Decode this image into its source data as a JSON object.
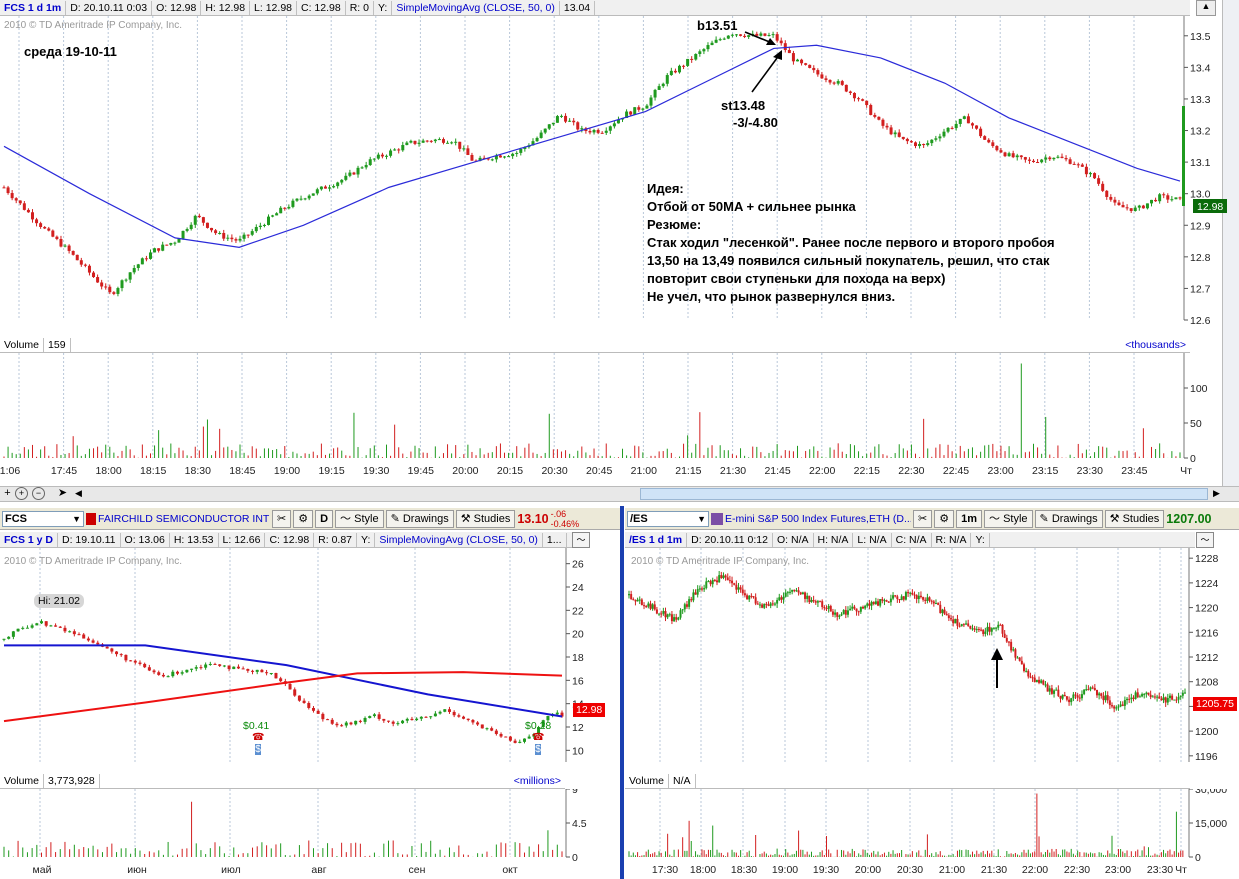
{
  "top": {
    "header": [
      "FCS 1 d 1m",
      "D: 20.10.11 0:03",
      "O: 12.98",
      "H: 12.98",
      "L: 12.98",
      "C: 12.98",
      "R: 0",
      "Y:",
      "SimpleMovingAvg (CLOSE, 50, 0)",
      "13.04"
    ],
    "copyright": "2010 © TD Ameritrade IP Company, Inc.",
    "date_note": "среда 19-10-11",
    "annot_b": "b13.51",
    "annot_st": "st13.48",
    "annot_pl": "-3/-4.80",
    "idea_lines": [
      "Идея:",
      "Отбой от 50MA + сильнее рынка",
      "Резюме:",
      "Стак ходил \"лесенкой\". Ранее после первого и второго пробоя",
      "13,50 на 13,49 появился сильный покупатель, решил, что стак",
      "повторит свои ступеньки для похода на верх)",
      "Не учел, что рынок развернулся вниз."
    ],
    "price_tag": "12.98",
    "volume_label": "Volume",
    "volume_value": "159",
    "volume_units": "<thousands>"
  },
  "bl_toolbar": {
    "symbol": "FCS",
    "name": "FAIRCHILD SEMICONDUCTOR INTL ...",
    "period": "D",
    "style": "Style",
    "drawings": "Drawings",
    "studies": "Studies",
    "price": "13.10",
    "chg": "-.06",
    "pct": "-0.46%"
  },
  "br_toolbar": {
    "symbol": "/ES",
    "name": "E-mini S&P 500 Index Futures,ETH (D...",
    "period": "1m",
    "style": "Style",
    "drawings": "Drawings",
    "studies": "Studies",
    "price": "1207.00"
  },
  "bl": {
    "header": [
      "FCS 1 y D",
      "D: 19.10.11",
      "O: 13.06",
      "H: 13.53",
      "L: 12.66",
      "C: 12.98",
      "R: 0.87",
      "Y:",
      "SimpleMovingAvg (CLOSE, 50, 0)",
      "1..."
    ],
    "copyright": "2010 © TD Ameritrade IP Company, Inc.",
    "hi_label": "Hi: 21.02",
    "div1": "$0.41",
    "div2": "$0.28",
    "price_tag": "12.98",
    "volume_label": "Volume",
    "volume_value": "3,773,928",
    "volume_units": "<millions>"
  },
  "br": {
    "header": [
      "/ES 1 d 1m",
      "D: 20.10.11 0:12",
      "O: N/A",
      "H: N/A",
      "L: N/A",
      "C: N/A",
      "R: N/A",
      "Y:"
    ],
    "copyright": "2010 © TD Ameritrade IP Company, Inc.",
    "price_tag": "1205.75",
    "volume_label": "Volume",
    "volume_value": "N/A"
  },
  "chart_data": [
    {
      "type": "candlestick",
      "symbol": "FCS",
      "interval": "1m",
      "x_ticks": [
        "1:06",
        "17:45",
        "18:00",
        "18:15",
        "18:30",
        "18:45",
        "19:00",
        "19:15",
        "19:30",
        "19:45",
        "20:00",
        "20:15",
        "20:30",
        "20:45",
        "21:00",
        "21:15",
        "21:30",
        "21:45",
        "22:00",
        "22:15",
        "22:30",
        "22:45",
        "23:00",
        "23:15",
        "23:30",
        "23:45",
        "Чт"
      ],
      "y_ticks": [
        12.6,
        12.7,
        12.8,
        12.9,
        13.0,
        13.1,
        13.2,
        13.3,
        13.4,
        13.5
      ],
      "ylim": [
        12.6,
        13.55
      ],
      "close_path": [
        [
          0,
          13.02
        ],
        [
          5,
          12.95
        ],
        [
          10,
          12.88
        ],
        [
          15,
          12.82
        ],
        [
          20,
          12.75
        ],
        [
          25,
          12.68
        ],
        [
          30,
          12.76
        ],
        [
          35,
          12.82
        ],
        [
          40,
          12.85
        ],
        [
          45,
          12.93
        ],
        [
          50,
          12.87
        ],
        [
          55,
          12.85
        ],
        [
          60,
          12.9
        ],
        [
          65,
          12.95
        ],
        [
          70,
          12.99
        ],
        [
          75,
          13.02
        ],
        [
          80,
          13.05
        ],
        [
          85,
          13.1
        ],
        [
          90,
          13.13
        ],
        [
          95,
          13.16
        ],
        [
          100,
          13.17
        ],
        [
          105,
          13.17
        ],
        [
          110,
          13.1
        ],
        [
          115,
          13.12
        ],
        [
          120,
          13.13
        ],
        [
          125,
          13.18
        ],
        [
          130,
          13.25
        ],
        [
          135,
          13.2
        ],
        [
          140,
          13.2
        ],
        [
          145,
          13.25
        ],
        [
          150,
          13.28
        ],
        [
          155,
          13.37
        ],
        [
          160,
          13.42
        ],
        [
          165,
          13.47
        ],
        [
          170,
          13.51
        ],
        [
          175,
          13.5
        ],
        [
          180,
          13.5
        ],
        [
          185,
          13.42
        ],
        [
          190,
          13.38
        ],
        [
          195,
          13.35
        ],
        [
          200,
          13.3
        ],
        [
          205,
          13.22
        ],
        [
          210,
          13.17
        ],
        [
          215,
          13.15
        ],
        [
          220,
          13.2
        ],
        [
          225,
          13.24
        ],
        [
          230,
          13.16
        ],
        [
          235,
          13.12
        ],
        [
          240,
          13.1
        ],
        [
          245,
          13.12
        ],
        [
          250,
          13.1
        ],
        [
          255,
          13.05
        ],
        [
          260,
          12.96
        ],
        [
          265,
          12.95
        ],
        [
          270,
          12.99
        ],
        [
          275,
          12.98
        ]
      ],
      "sma50": [
        [
          0,
          13.15
        ],
        [
          20,
          13.0
        ],
        [
          40,
          12.86
        ],
        [
          55,
          12.83
        ],
        [
          70,
          12.9
        ],
        [
          90,
          13.02
        ],
        [
          110,
          13.1
        ],
        [
          130,
          13.18
        ],
        [
          150,
          13.26
        ],
        [
          165,
          13.36
        ],
        [
          180,
          13.46
        ],
        [
          190,
          13.47
        ],
        [
          205,
          13.43
        ],
        [
          220,
          13.35
        ],
        [
          235,
          13.24
        ],
        [
          250,
          13.16
        ],
        [
          265,
          13.08
        ],
        [
          275,
          13.04
        ]
      ],
      "volume_ylim": [
        0,
        150
      ],
      "volume_ticks": [
        0,
        50,
        100
      ],
      "volume_peaks": [
        [
          50,
          55
        ],
        [
          250,
          135
        ]
      ],
      "annotations": [
        "b13.51",
        "st13.48",
        "-3/-4.80"
      ]
    },
    {
      "type": "candlestick",
      "symbol": "FCS",
      "interval": "D",
      "x_ticks": [
        "май",
        "июн",
        "июл",
        "авг",
        "сен",
        "окт"
      ],
      "y_ticks": [
        10,
        12,
        14,
        16,
        18,
        20,
        22,
        24,
        26
      ],
      "ylim": [
        9,
        27
      ],
      "close_path": [
        [
          0,
          19.5
        ],
        [
          5,
          20.5
        ],
        [
          10,
          21.0
        ],
        [
          15,
          20.5
        ],
        [
          20,
          20.0
        ],
        [
          25,
          19.4
        ],
        [
          30,
          18.5
        ],
        [
          35,
          17.8
        ],
        [
          40,
          17.0
        ],
        [
          45,
          16.3
        ],
        [
          50,
          16.8
        ],
        [
          55,
          17.2
        ],
        [
          60,
          17.5
        ],
        [
          65,
          17.0
        ],
        [
          70,
          16.7
        ],
        [
          75,
          16.8
        ],
        [
          80,
          15.5
        ],
        [
          85,
          14.0
        ],
        [
          90,
          12.8
        ],
        [
          95,
          12.2
        ],
        [
          100,
          12.4
        ],
        [
          105,
          13.0
        ],
        [
          110,
          12.3
        ],
        [
          115,
          12.6
        ],
        [
          120,
          12.8
        ],
        [
          125,
          13.5
        ],
        [
          130,
          12.8
        ],
        [
          135,
          12.0
        ],
        [
          140,
          11.3
        ],
        [
          145,
          10.6
        ],
        [
          150,
          11.5
        ],
        [
          155,
          13.2
        ],
        [
          158,
          12.98
        ]
      ],
      "sma50": [
        [
          0,
          19.0
        ],
        [
          40,
          19.0
        ],
        [
          80,
          17.3
        ],
        [
          120,
          14.8
        ],
        [
          158,
          12.9
        ]
      ],
      "sma200": [
        [
          0,
          12.5
        ],
        [
          40,
          14.1
        ],
        [
          80,
          15.8
        ],
        [
          100,
          16.6
        ],
        [
          130,
          16.7
        ],
        [
          158,
          16.4
        ]
      ],
      "hi": 21.02,
      "dividends": [
        "$0.41",
        "$0.28"
      ],
      "volume_ylim": [
        0,
        9
      ],
      "volume_ticks": [
        0,
        4.5,
        9
      ]
    },
    {
      "type": "candlestick",
      "symbol": "/ES",
      "interval": "1m",
      "x_ticks": [
        "17:30",
        "18:00",
        "18:30",
        "19:00",
        "19:30",
        "20:00",
        "20:30",
        "21:00",
        "21:30",
        "22:00",
        "22:30",
        "23:00",
        "23:30",
        "Чт"
      ],
      "y_ticks": [
        1196,
        1200,
        1204,
        1208,
        1212,
        1216,
        1220,
        1224,
        1228
      ],
      "ylim": [
        1195,
        1229
      ],
      "close_path": [
        [
          0,
          1222
        ],
        [
          10,
          1220
        ],
        [
          20,
          1218
        ],
        [
          30,
          1223
        ],
        [
          40,
          1225
        ],
        [
          50,
          1222
        ],
        [
          60,
          1220
        ],
        [
          70,
          1223
        ],
        [
          80,
          1221
        ],
        [
          90,
          1219
        ],
        [
          100,
          1220
        ],
        [
          110,
          1221
        ],
        [
          120,
          1222
        ],
        [
          130,
          1221
        ],
        [
          140,
          1218
        ],
        [
          150,
          1216
        ],
        [
          160,
          1217
        ],
        [
          170,
          1210
        ],
        [
          180,
          1207
        ],
        [
          190,
          1205
        ],
        [
          200,
          1207
        ],
        [
          210,
          1204
        ],
        [
          220,
          1206
        ],
        [
          230,
          1205
        ],
        [
          240,
          1206
        ]
      ],
      "volume_ylim": [
        0,
        30000
      ],
      "volume_ticks": [
        "30,000",
        "15,000",
        "0"
      ]
    }
  ]
}
